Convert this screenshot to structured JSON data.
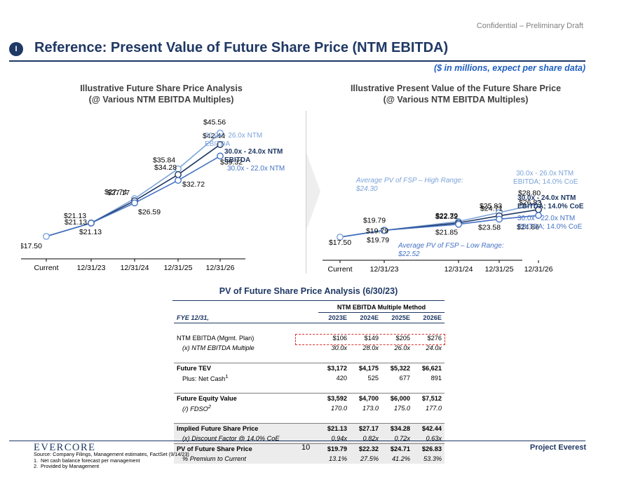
{
  "header": {
    "confidential": "Confidential – Preliminary Draft",
    "section_marker": "I",
    "title": "Reference: Present Value of Future Share Price (NTM EBITDA)",
    "subtitle": "($ in millions, expect per share data)"
  },
  "colors": {
    "navy": "#1f3864",
    "light_blue": "#7ba3d9",
    "mid_blue": "#4472c4"
  },
  "left_chart": {
    "title_line1": "Illustrative Future Share Price Analysis",
    "title_line2": "(@ Various NTM EBITDA Multiples)"
  },
  "right_chart": {
    "title_line1": "Illustrative Present Value of the Future Share Price",
    "title_line2": "(@ Various NTM EBITDA Multiples)"
  },
  "chart_data": [
    {
      "type": "line",
      "title": "Illustrative Future Share Price Analysis (@ Various NTM EBITDA Multiples)",
      "categories": [
        "Current",
        "12/31/23",
        "12/31/24",
        "12/31/25",
        "12/31/26"
      ],
      "series": [
        {
          "name": "30.0x - 26.0x NTM EBITDA",
          "values": [
            17.5,
            21.13,
            27.74,
            35.84,
            45.56
          ],
          "labels": [
            "$17.50",
            "$21.13",
            "$27.74",
            "$35.84",
            "$45.56"
          ]
        },
        {
          "name": "30.0x - 24.0x NTM EBITDA",
          "values": [
            17.5,
            21.13,
            27.17,
            34.28,
            42.44
          ],
          "labels": [
            "",
            "$21.13",
            "$27.17",
            "$34.28",
            "$42.44"
          ]
        },
        {
          "name": "30.0x - 22.0x NTM",
          "values": [
            17.5,
            21.13,
            26.59,
            32.72,
            39.32
          ],
          "labels": [
            "",
            "$21.13",
            "$26.59",
            "$32.72",
            "$39.32"
          ]
        }
      ],
      "legend": [
        {
          "line1": "30.0x - 26.0x NTM",
          "line2": "EBITDA"
        },
        {
          "line1": "30.0x - 24.0x NTM",
          "line2": "EBITDA"
        },
        {
          "line1": "30.0x - 22.0x NTM",
          "line2": ""
        }
      ],
      "ylim": [
        15,
        48
      ]
    },
    {
      "type": "line",
      "title": "Illustrative Present Value of the Future Share Price (@ Various NTM EBITDA Multiples)",
      "categories": [
        "Current",
        "12/31/23",
        "12/31/24",
        "12/31/25",
        "12/31/26"
      ],
      "series": [
        {
          "name": "30.0x - 26.0x NTM EBITDA; 14.0% CoE",
          "values": [
            17.5,
            19.79,
            22.79,
            25.83,
            28.8
          ],
          "labels": [
            "$17.50",
            "$19.79",
            "$22.79",
            "$25.83",
            "$28.80"
          ]
        },
        {
          "name": "30.0x - 24.0x NTM EBITDA; 14.0% CoE",
          "values": [
            17.5,
            19.79,
            22.32,
            24.71,
            26.83
          ],
          "labels": [
            "",
            "$19.79",
            "$22.32",
            "$24.71",
            "$26.83"
          ]
        },
        {
          "name": "30.0x - 22.0x NTM EBITDA; 14.0% CoE",
          "values": [
            17.5,
            19.79,
            21.85,
            23.58,
            24.86
          ],
          "labels": [
            "",
            "$19.79",
            "$21.85",
            "$23.58",
            "$24.86"
          ]
        }
      ],
      "legend": [
        {
          "line1": "30.0x - 26.0x NTM",
          "line2": "EBITDA; 14.0% CoE"
        },
        {
          "line1": "30.0x - 24.0x NTM",
          "line2": "EBITDA; 14.0% CoE"
        },
        {
          "line1": "30.0x - 22.0x NTM",
          "line2": "EBITDA; 14.0% CoE"
        }
      ],
      "annotations": {
        "high_line1": "Average PV of FSP – High Range:",
        "high_line2": "$24.30",
        "low_line1": "Average PV of FSP – Low Range:",
        "low_line2": "$22.52"
      },
      "ylim": [
        15,
        31
      ]
    }
  ],
  "table": {
    "title": "PV of Future Share Price Analysis (6/30/23)",
    "method": "NTM EBITDA Multiple Method",
    "fye": "FYE 12/31,",
    "years": [
      "2023E",
      "2024E",
      "2025E",
      "2026E"
    ],
    "rows": [
      {
        "label": "NTM EBITDA (Mgmt. Plan)",
        "values": [
          "$106",
          "$149",
          "$205",
          "$276"
        ]
      },
      {
        "label": "(x) NTM EBITDA Multiple",
        "values": [
          "30.0x",
          "28.0x",
          "26.0x",
          "24.0x"
        ]
      },
      {
        "label": "Future TEV",
        "values": [
          "$3,172",
          "$4,175",
          "$5,322",
          "$6,621"
        ]
      },
      {
        "label": "Plus: Net Cash",
        "sup": "1",
        "values": [
          "420",
          "525",
          "677",
          "891"
        ]
      },
      {
        "label": "Future Equity Value",
        "values": [
          "$3,592",
          "$4,700",
          "$6,000",
          "$7,512"
        ]
      },
      {
        "label": "(/) FDSO",
        "sup": "2",
        "values": [
          "170.0",
          "173.0",
          "175.0",
          "177.0"
        ]
      },
      {
        "label": "Implied Future Share Price",
        "values": [
          "$21.13",
          "$27.17",
          "$34.28",
          "$42.44"
        ]
      },
      {
        "label": "(x) Discount Factor @ 14.0% CoE",
        "values": [
          "0.94x",
          "0.82x",
          "0.72x",
          "0.63x"
        ]
      },
      {
        "label": "PV of Future Share Price",
        "values": [
          "$19.79",
          "$22.32",
          "$24.71",
          "$26.83"
        ]
      },
      {
        "label": "% Premium to Current",
        "values": [
          "13.1%",
          "27.5%",
          "41.2%",
          "53.3%"
        ]
      }
    ]
  },
  "footer": {
    "logo": "EVERCORE",
    "page_number": "10",
    "project": "Project Everest",
    "source": "Source: Company Filings, Management estimates, FactSet (9/14/23)",
    "notes": [
      {
        "num": "1.",
        "text": "Net cash balance forecast per management"
      },
      {
        "num": "2.",
        "text": "Provided by Management"
      }
    ]
  }
}
